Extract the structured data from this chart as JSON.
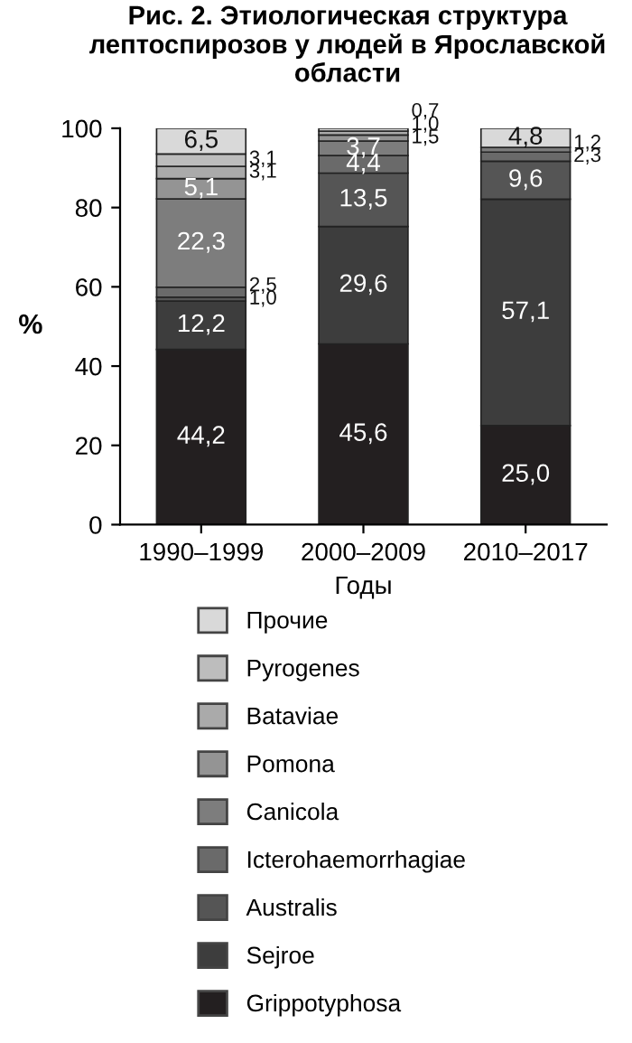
{
  "chart_data": {
    "type": "bar",
    "title": "Рис. 2. Этиологическая структура лептоспирозов у людей в Ярославской области",
    "xlabel": "Годы",
    "ylabel": "%",
    "categories": [
      "1990–1999",
      "2000–2009",
      "2010–2017"
    ],
    "stacked": true,
    "ylim": [
      0,
      100
    ],
    "yticks": [
      0,
      20,
      40,
      60,
      80,
      100
    ],
    "grid": false,
    "legend": "bottom",
    "series": [
      {
        "name": "Grippotyphosa",
        "color": "#231f20",
        "values": [
          44.2,
          45.6,
          25.0
        ],
        "value_labels": [
          "44,2",
          "45,6",
          "25,0"
        ]
      },
      {
        "name": "Sejroe",
        "color": "#3d3d3d",
        "values": [
          12.2,
          29.6,
          57.1
        ],
        "value_labels": [
          "12,2",
          "29,6",
          "57,1"
        ]
      },
      {
        "name": "Australis",
        "color": "#555555",
        "values": [
          1.0,
          13.5,
          9.6
        ],
        "value_labels": [
          "1,0",
          "13,5",
          "9,6"
        ]
      },
      {
        "name": "Icterohaemorrhagiae",
        "color": "#6a6a6a",
        "values": [
          2.5,
          4.4,
          2.3
        ],
        "value_labels": [
          "2,5",
          "4,4",
          "2,3"
        ]
      },
      {
        "name": "Canicola",
        "color": "#7d7d7d",
        "values": [
          22.3,
          3.7,
          1.2
        ],
        "value_labels": [
          "22,3",
          "3,7",
          "1,2"
        ]
      },
      {
        "name": "Pomona",
        "color": "#949494",
        "values": [
          5.1,
          1.5,
          null
        ],
        "value_labels": [
          "5,1",
          "1,5",
          null
        ]
      },
      {
        "name": "Bataviae",
        "color": "#aaaaaa",
        "values": [
          3.1,
          1.0,
          null
        ],
        "value_labels": [
          "3,1",
          "1,0",
          null
        ]
      },
      {
        "name": "Pyrogenes",
        "color": "#bdbdbd",
        "values": [
          3.1,
          null,
          null
        ],
        "value_labels": [
          "3,1",
          null,
          null
        ]
      },
      {
        "name": "Прочие",
        "color": "#d9d9d9",
        "values": [
          6.5,
          0.7,
          4.8
        ],
        "value_labels": [
          "6,5",
          "0,7",
          "4,8"
        ]
      }
    ]
  }
}
